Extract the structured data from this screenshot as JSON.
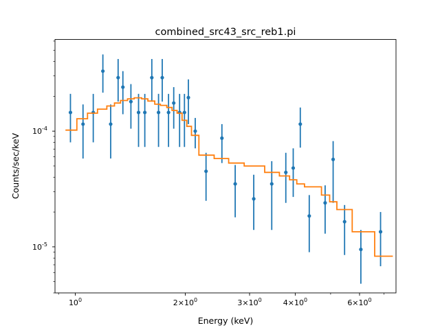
{
  "chart_data": {
    "type": "scatter",
    "title": "combined_src43_src_reb1.pi",
    "xlabel": "Energy (keV)",
    "ylabel": "Counts/sec/keV",
    "xscale": "log",
    "yscale": "log",
    "xlim": [
      0.88,
      7.55
    ],
    "ylim": [
      4e-06,
      0.00062
    ],
    "x_ticks": [
      {
        "value": 1,
        "label": "10^0"
      },
      {
        "value": 2,
        "label": "2×10^0"
      },
      {
        "value": 3,
        "label": "3×10^0"
      },
      {
        "value": 4,
        "label": "4×10^0"
      },
      {
        "value": 6,
        "label": "6×10^0"
      }
    ],
    "y_ticks": [
      {
        "value": 1e-05,
        "label": "10^-5"
      },
      {
        "value": 0.0001,
        "label": "10^-4"
      }
    ],
    "grid": false,
    "colors": {
      "data": "#1f77b4",
      "model": "#ff7f0e"
    },
    "series": [
      {
        "kind": "data_with_errorbars",
        "points": [
          {
            "x": 0.97,
            "y": 0.000145,
            "lo": 8e-05,
            "hi": 0.00021
          },
          {
            "x": 1.05,
            "y": 0.000115,
            "lo": 5.8e-05,
            "hi": 0.00017
          },
          {
            "x": 1.12,
            "y": 0.000145,
            "lo": 8e-05,
            "hi": 0.00021
          },
          {
            "x": 1.19,
            "y": 0.00033,
            "lo": 0.000215,
            "hi": 0.00046
          },
          {
            "x": 1.25,
            "y": 0.000115,
            "lo": 5.8e-05,
            "hi": 0.00017
          },
          {
            "x": 1.31,
            "y": 0.00029,
            "lo": 0.00018,
            "hi": 0.00042
          },
          {
            "x": 1.35,
            "y": 0.00024,
            "lo": 0.00014,
            "hi": 0.00033
          },
          {
            "x": 1.42,
            "y": 0.00018,
            "lo": 0.000105,
            "hi": 0.000255
          },
          {
            "x": 1.49,
            "y": 0.000145,
            "lo": 7.3e-05,
            "hi": 0.00021
          },
          {
            "x": 1.55,
            "y": 0.000145,
            "lo": 7.3e-05,
            "hi": 0.00021
          },
          {
            "x": 1.62,
            "y": 0.00029,
            "lo": 0.00018,
            "hi": 0.00042
          },
          {
            "x": 1.69,
            "y": 0.000145,
            "lo": 7.3e-05,
            "hi": 0.00021
          },
          {
            "x": 1.73,
            "y": 0.00029,
            "lo": 0.00018,
            "hi": 0.00042
          },
          {
            "x": 1.8,
            "y": 0.000145,
            "lo": 7.3e-05,
            "hi": 0.00021
          },
          {
            "x": 1.86,
            "y": 0.000175,
            "lo": 0.000105,
            "hi": 0.00024
          },
          {
            "x": 1.93,
            "y": 0.000145,
            "lo": 7.3e-05,
            "hi": 0.00021
          },
          {
            "x": 1.99,
            "y": 0.000145,
            "lo": 7.3e-05,
            "hi": 0.00021
          },
          {
            "x": 2.04,
            "y": 0.000195,
            "lo": 0.000115,
            "hi": 0.00028
          },
          {
            "x": 2.13,
            "y": 0.0001,
            "lo": 7.1e-05,
            "hi": 0.00013
          },
          {
            "x": 2.28,
            "y": 4.5e-05,
            "lo": 2.5e-05,
            "hi": 6.5e-05
          },
          {
            "x": 2.52,
            "y": 8.7e-05,
            "lo": 5.3e-05,
            "hi": 0.000115
          },
          {
            "x": 2.74,
            "y": 3.5e-05,
            "lo": 1.8e-05,
            "hi": 5.1e-05
          },
          {
            "x": 3.08,
            "y": 2.6e-05,
            "lo": 1.4e-05,
            "hi": 4.2e-05
          },
          {
            "x": 3.45,
            "y": 3.5e-05,
            "lo": 1.4e-05,
            "hi": 5.5e-05
          },
          {
            "x": 3.77,
            "y": 4.4e-05,
            "lo": 2.4e-05,
            "hi": 6.5e-05
          },
          {
            "x": 3.95,
            "y": 4.8e-05,
            "lo": 2.7e-05,
            "hi": 7.1e-05
          },
          {
            "x": 4.13,
            "y": 0.000115,
            "lo": 7.2e-05,
            "hi": 0.00016
          },
          {
            "x": 4.37,
            "y": 1.85e-05,
            "lo": 9e-06,
            "hi": 2.8e-05
          },
          {
            "x": 4.83,
            "y": 2.4e-05,
            "lo": 1.3e-05,
            "hi": 3.4e-05
          },
          {
            "x": 5.08,
            "y": 5.7e-05,
            "lo": 2.4e-05,
            "hi": 8.2e-05
          },
          {
            "x": 5.46,
            "y": 1.65e-05,
            "lo": 8.5e-06,
            "hi": 2.3e-05
          },
          {
            "x": 6.05,
            "y": 9.5e-06,
            "lo": 4.8e-06,
            "hi": 1.4e-05
          },
          {
            "x": 6.85,
            "y": 1.35e-05,
            "lo": 6.8e-06,
            "hi": 2e-05
          }
        ]
      },
      {
        "kind": "model_step",
        "x": [
          0.94,
          1.01,
          1.08,
          1.15,
          1.22,
          1.28,
          1.33,
          1.39,
          1.45,
          1.52,
          1.58,
          1.65,
          1.71,
          1.78,
          1.84,
          1.9,
          1.96,
          2.02,
          2.08,
          2.18,
          2.4,
          2.63,
          2.9,
          3.3,
          3.62,
          3.86,
          4.04,
          4.24,
          4.72,
          4.97,
          5.2,
          5.73,
          6.6,
          7.4
        ],
        "y": [
          0.000102,
          0.000128,
          0.000143,
          0.000155,
          0.000165,
          0.000175,
          0.000184,
          0.00019,
          0.000194,
          0.00019,
          0.000182,
          0.000171,
          0.000167,
          0.00016,
          0.000151,
          0.000143,
          0.000124,
          0.00011,
          9.2e-05,
          6.2e-05,
          5.8e-05,
          5.3e-05,
          5e-05,
          4.4e-05,
          4.1e-05,
          3.8e-05,
          3.5e-05,
          3.3e-05,
          2.8e-05,
          2.45e-05,
          2.1e-05,
          1.35e-05,
          8.3e-06,
          8.3e-06
        ]
      }
    ]
  }
}
